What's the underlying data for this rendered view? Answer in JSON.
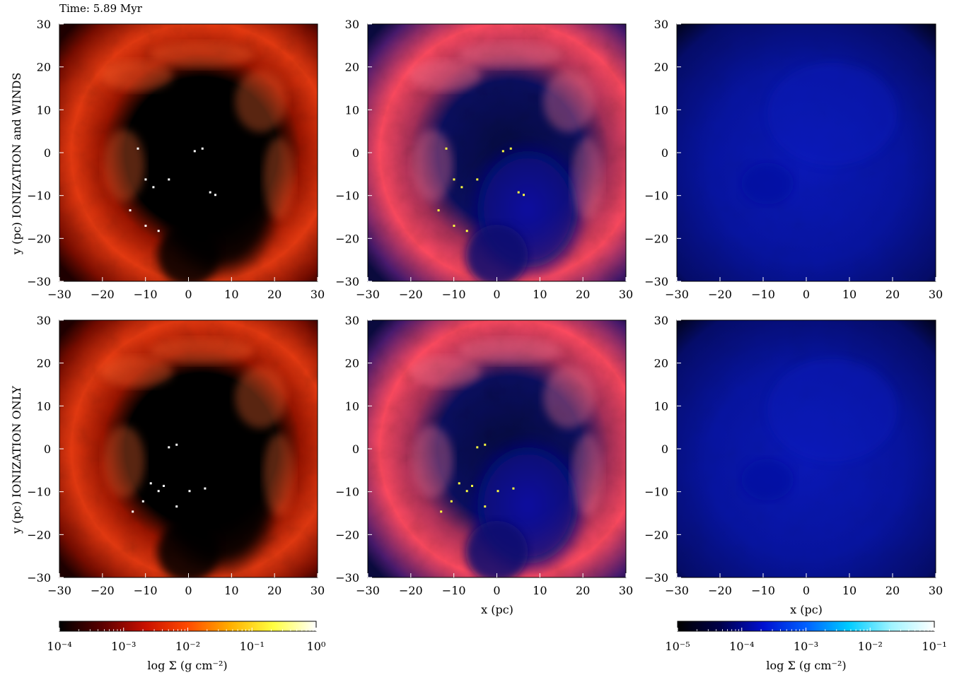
{
  "figure": {
    "time_label": "Time: 5.89 Myr",
    "row_labels": [
      "y (pc) IONIZATION and WINDS",
      "y (pc) IONIZATION ONLY"
    ],
    "xlabel": "x (pc)",
    "colorbar_left": {
      "label": "log Σ (g cm⁻²)",
      "tick_labels": [
        "10⁻⁴",
        "10⁻³",
        "10⁻²",
        "10⁻¹",
        "10⁰"
      ],
      "colormap": "hot",
      "colors": [
        "#000000",
        "#5a0000",
        "#c81000",
        "#ff4a00",
        "#ffb000",
        "#ffff40",
        "#ffffff"
      ]
    },
    "colorbar_right": {
      "label": "log Σ (g cm⁻²)",
      "tick_labels": [
        "10⁻⁵",
        "10⁻⁴",
        "10⁻³",
        "10⁻²",
        "10⁻¹"
      ],
      "colormap": "blue",
      "colors": [
        "#000000",
        "#00004a",
        "#0010d0",
        "#0060ff",
        "#00ccff",
        "#a0f4ff",
        "#ffffff"
      ]
    }
  },
  "chart_data": [
    {
      "type": "heatmap",
      "colormap": "hot",
      "rows": "IONIZATION and WINDS",
      "column": 1,
      "x_ticks": [
        -30,
        -20,
        -10,
        0,
        10,
        20,
        30
      ],
      "y_ticks": [
        30,
        20,
        10,
        0,
        -10,
        -20,
        -30
      ],
      "xlim": [
        -30,
        30
      ],
      "ylim": [
        -30,
        30
      ]
    },
    {
      "type": "heatmap",
      "colormap": "hot+blue",
      "rows": "IONIZATION and WINDS",
      "column": 2,
      "x_ticks": [
        -30,
        -20,
        -10,
        0,
        10,
        20,
        30
      ],
      "y_ticks": [
        30,
        20,
        10,
        0,
        -10,
        -20,
        -30
      ],
      "xlim": [
        -30,
        30
      ],
      "ylim": [
        -30,
        30
      ]
    },
    {
      "type": "heatmap",
      "colormap": "blue",
      "rows": "IONIZATION and WINDS",
      "column": 3,
      "x_ticks": [
        -30,
        -20,
        -10,
        0,
        10,
        20,
        30
      ],
      "y_ticks": [
        30,
        20,
        10,
        0,
        -10,
        -20,
        -30
      ],
      "xlim": [
        -30,
        30
      ],
      "ylim": [
        -30,
        30
      ]
    },
    {
      "type": "heatmap",
      "colormap": "hot",
      "rows": "IONIZATION ONLY",
      "column": 1,
      "x_ticks": [
        -30,
        -20,
        -10,
        0,
        10,
        20,
        30
      ],
      "y_ticks": [
        30,
        20,
        10,
        0,
        -10,
        -20,
        -30
      ],
      "xlim": [
        -30,
        30
      ],
      "ylim": [
        -30,
        30
      ]
    },
    {
      "type": "heatmap",
      "colormap": "hot+blue",
      "rows": "IONIZATION ONLY",
      "column": 2,
      "x_ticks": [
        -30,
        -20,
        -10,
        0,
        10,
        20,
        30
      ],
      "y_ticks": [
        30,
        20,
        10,
        0,
        -10,
        -20,
        -30
      ],
      "xlim": [
        -30,
        30
      ],
      "ylim": [
        -30,
        30
      ]
    },
    {
      "type": "heatmap",
      "colormap": "blue",
      "rows": "IONIZATION ONLY",
      "column": 3,
      "x_ticks": [
        -30,
        -20,
        -10,
        0,
        10,
        20,
        30
      ],
      "y_ticks": [
        30,
        20,
        10,
        0,
        -10,
        -20,
        -30
      ],
      "xlim": [
        -30,
        30
      ],
      "ylim": [
        -30,
        30
      ]
    }
  ]
}
